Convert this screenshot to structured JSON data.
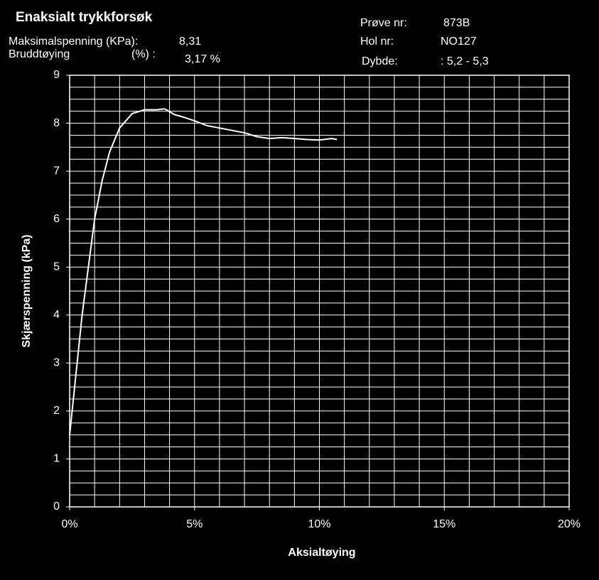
{
  "chart_data": {
    "type": "line",
    "title": "Enaksialt trykkforsøk",
    "annotations": {
      "max_label": "Maksimalspenning  (KPa):",
      "max_value": "8,31",
      "strain_label": "Bruddtøying",
      "strain_unit": "(%) :",
      "strain_value": "3,17 %",
      "sample_label": "Prøve  nr:",
      "sample_value": "873B",
      "hole_label": "Hol nr:",
      "hole_value": "NO127",
      "depth_label": "Dybde:",
      "depth_value": ": 5,2 - 5,3"
    },
    "x_label": "Aksialtøying",
    "y_label": "Skjærspenning  (kPa)",
    "xlim": [
      0,
      20
    ],
    "ylim": [
      0,
      9
    ],
    "xticks": [
      {
        "value": 0,
        "label": "0%"
      },
      {
        "value": 5,
        "label": "5%"
      },
      {
        "value": 10,
        "label": "10%"
      },
      {
        "value": 15,
        "label": "15%"
      },
      {
        "value": 20,
        "label": "20%"
      }
    ],
    "yticks": [
      0,
      1,
      2,
      3,
      4,
      5,
      6,
      7,
      8,
      9
    ],
    "x_minor_step": 1,
    "y_minor_step": 0.25,
    "grid": true,
    "series": [
      {
        "color": "#ffffff",
        "x": [
          0,
          0.1,
          0.3,
          0.5,
          0.75,
          1.0,
          1.3,
          1.6,
          2.0,
          2.5,
          3.0,
          3.5,
          3.8,
          4.2,
          4.6,
          5.0,
          5.5,
          6.0,
          6.5,
          7.0,
          7.5,
          8.0,
          8.5,
          9.0,
          9.5,
          10.0,
          10.5,
          10.7
        ],
        "values": [
          1.5,
          2.0,
          3.0,
          4.0,
          5.0,
          6.0,
          6.8,
          7.4,
          7.9,
          8.2,
          8.28,
          8.28,
          8.3,
          8.18,
          8.12,
          8.05,
          7.95,
          7.9,
          7.85,
          7.8,
          7.72,
          7.68,
          7.7,
          7.68,
          7.66,
          7.65,
          7.68,
          7.66
        ]
      }
    ]
  }
}
